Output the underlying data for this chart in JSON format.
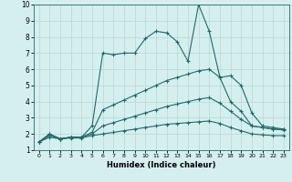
{
  "xlabel": "Humidex (Indice chaleur)",
  "background_color": "#d5efee",
  "grid_color": "#b8d8d6",
  "line_color": "#1e6b6b",
  "xlim": [
    -0.5,
    23.5
  ],
  "ylim": [
    1,
    10
  ],
  "xticks": [
    0,
    1,
    2,
    3,
    4,
    5,
    6,
    7,
    8,
    9,
    10,
    11,
    12,
    13,
    14,
    15,
    16,
    17,
    18,
    19,
    20,
    21,
    22,
    23
  ],
  "yticks": [
    1,
    2,
    3,
    4,
    5,
    6,
    7,
    8,
    9,
    10
  ],
  "series": [
    [
      1.5,
      2.0,
      1.7,
      1.8,
      1.8,
      2.5,
      7.0,
      6.9,
      7.0,
      7.0,
      7.9,
      8.35,
      8.25,
      7.7,
      6.5,
      10.0,
      8.35,
      5.5,
      5.6,
      5.0,
      3.3,
      2.5,
      2.4,
      2.3
    ],
    [
      1.5,
      2.0,
      1.7,
      1.8,
      1.8,
      2.1,
      3.5,
      3.8,
      4.1,
      4.4,
      4.7,
      5.0,
      5.3,
      5.5,
      5.7,
      5.9,
      6.0,
      5.5,
      4.0,
      3.4,
      2.5,
      2.4,
      2.3,
      2.3
    ],
    [
      1.5,
      1.9,
      1.7,
      1.8,
      1.8,
      2.0,
      2.5,
      2.7,
      2.9,
      3.1,
      3.3,
      3.5,
      3.7,
      3.85,
      4.0,
      4.15,
      4.25,
      3.9,
      3.4,
      2.9,
      2.5,
      2.4,
      2.3,
      2.25
    ],
    [
      1.5,
      1.8,
      1.7,
      1.75,
      1.75,
      1.9,
      2.0,
      2.1,
      2.2,
      2.3,
      2.4,
      2.5,
      2.6,
      2.65,
      2.7,
      2.75,
      2.8,
      2.65,
      2.4,
      2.2,
      2.0,
      1.95,
      1.9,
      1.9
    ]
  ]
}
